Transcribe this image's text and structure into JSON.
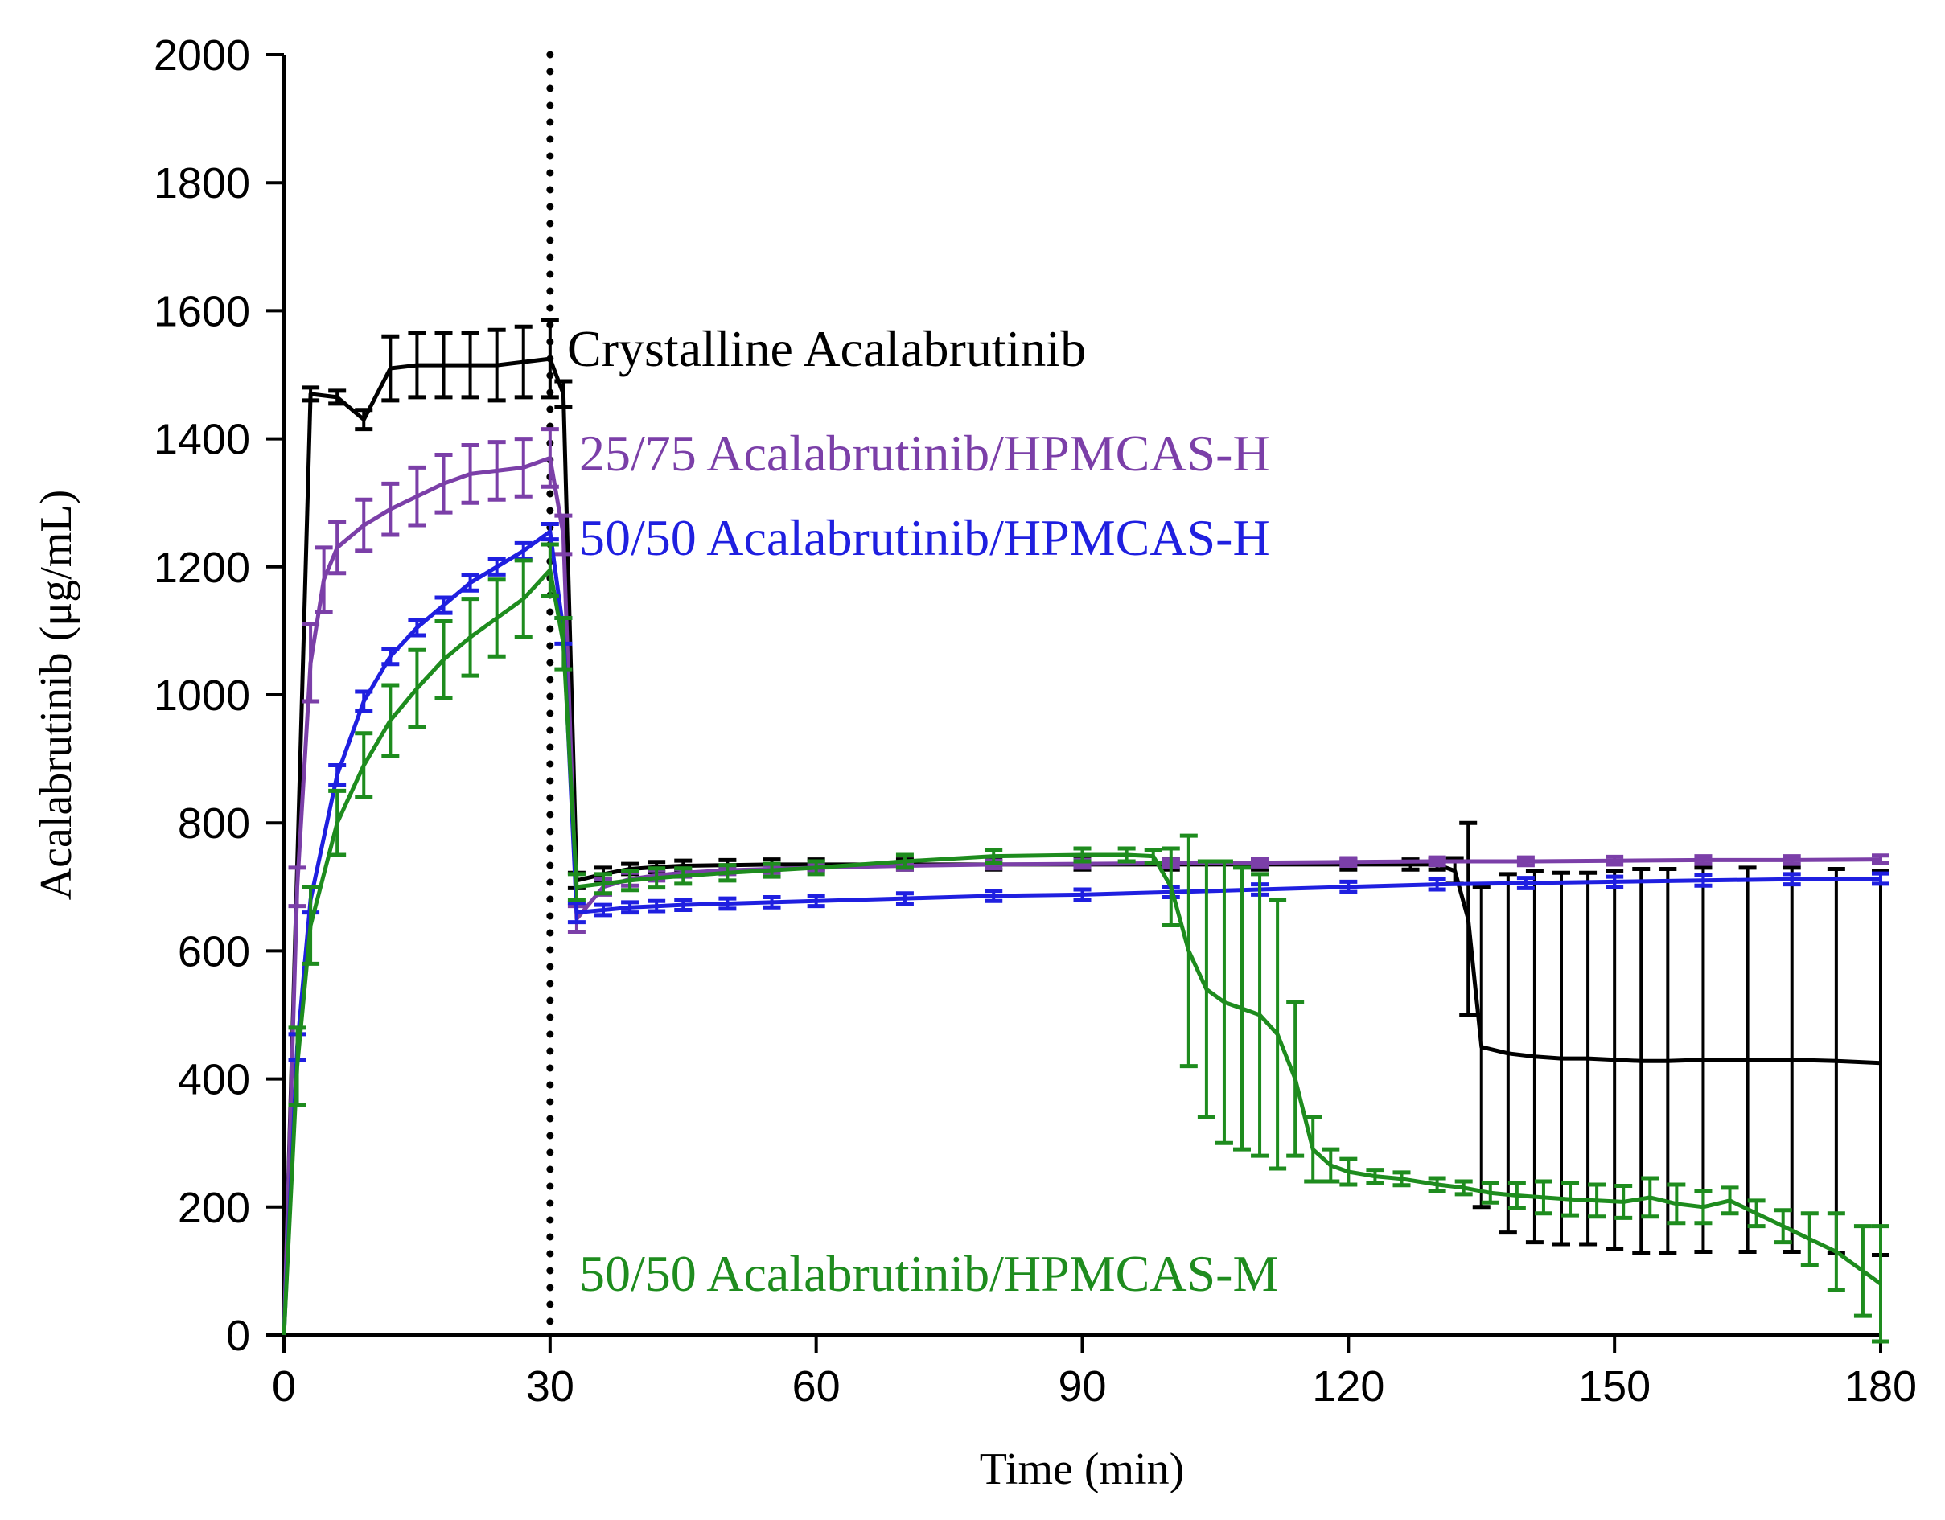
{
  "chart_data": {
    "type": "line",
    "title": "",
    "xlabel": "Time (min)",
    "ylabel": "Acalabrutinib (μg/mL)",
    "xlim": [
      0,
      180
    ],
    "ylim": [
      0,
      2000
    ],
    "xticks": [
      0,
      30,
      60,
      90,
      120,
      150,
      180
    ],
    "yticks": [
      0,
      200,
      400,
      600,
      800,
      1000,
      1200,
      1400,
      1600,
      1800,
      2000
    ],
    "xtick_labels": [
      "0",
      "30",
      "60",
      "90",
      "120",
      "150",
      "180"
    ],
    "ytick_labels": [
      "0",
      "200",
      "400",
      "600",
      "800",
      "1000",
      "1200",
      "1400",
      "1600",
      "1800",
      "2000"
    ],
    "grid": false,
    "vline": {
      "x": 30,
      "style": "dotted"
    },
    "series": [
      {
        "name": "Crystalline Acalabrutinib",
        "color": "#000000",
        "label": "Crystalline  Acalabrutinib",
        "points": [
          [
            0,
            0,
            0
          ],
          [
            3,
            1470,
            10
          ],
          [
            6,
            1465,
            10
          ],
          [
            9,
            1430,
            15
          ],
          [
            12,
            1510,
            50
          ],
          [
            15,
            1515,
            50
          ],
          [
            18,
            1515,
            50
          ],
          [
            21,
            1515,
            50
          ],
          [
            24,
            1515,
            55
          ],
          [
            27,
            1520,
            55
          ],
          [
            30,
            1525,
            60
          ],
          [
            31.5,
            1470,
            20
          ],
          [
            33,
            710,
            12
          ],
          [
            36,
            720,
            10
          ],
          [
            39,
            728,
            8
          ],
          [
            42,
            731,
            8
          ],
          [
            45,
            733,
            8
          ],
          [
            50,
            734,
            8
          ],
          [
            55,
            735,
            8
          ],
          [
            60,
            735,
            8
          ],
          [
            70,
            735,
            8
          ],
          [
            80,
            735,
            8
          ],
          [
            90,
            735,
            8
          ],
          [
            100,
            735,
            8
          ],
          [
            110,
            735,
            8
          ],
          [
            120,
            735,
            8
          ],
          [
            127,
            735,
            8
          ],
          [
            130,
            735,
            8
          ],
          [
            132,
            725,
            20
          ],
          [
            133.5,
            650,
            150
          ],
          [
            135,
            450,
            250
          ],
          [
            138,
            440,
            280
          ],
          [
            141,
            435,
            290
          ],
          [
            144,
            432,
            290
          ],
          [
            147,
            432,
            290
          ],
          [
            150,
            430,
            295
          ],
          [
            153,
            428,
            300
          ],
          [
            156,
            428,
            300
          ],
          [
            160,
            430,
            300
          ],
          [
            165,
            430,
            300
          ],
          [
            170,
            430,
            300
          ],
          [
            175,
            428,
            300
          ],
          [
            180,
            425,
            300
          ]
        ]
      },
      {
        "name": "25/75 Acalabrutinib/HPMCAS-H",
        "color": "#7B3FA8",
        "label": "25/75 Acalabrutinib/HPMCAS-H",
        "points": [
          [
            0,
            0,
            0
          ],
          [
            1.5,
            700,
            30
          ],
          [
            3,
            1050,
            60
          ],
          [
            4.5,
            1180,
            50
          ],
          [
            6,
            1230,
            40
          ],
          [
            9,
            1265,
            40
          ],
          [
            12,
            1290,
            40
          ],
          [
            15,
            1310,
            45
          ],
          [
            18,
            1330,
            45
          ],
          [
            21,
            1345,
            45
          ],
          [
            24,
            1350,
            45
          ],
          [
            27,
            1355,
            45
          ],
          [
            30,
            1370,
            45
          ],
          [
            31.5,
            1250,
            30
          ],
          [
            33,
            650,
            20
          ],
          [
            36,
            700,
            12
          ],
          [
            39,
            712,
            10
          ],
          [
            42,
            718,
            8
          ],
          [
            45,
            722,
            6
          ],
          [
            50,
            726,
            6
          ],
          [
            55,
            728,
            6
          ],
          [
            60,
            730,
            6
          ],
          [
            70,
            733,
            6
          ],
          [
            80,
            735,
            6
          ],
          [
            90,
            736,
            6
          ],
          [
            100,
            737,
            6
          ],
          [
            110,
            738,
            6
          ],
          [
            120,
            739,
            6
          ],
          [
            130,
            740,
            6
          ],
          [
            140,
            740,
            6
          ],
          [
            150,
            741,
            6
          ],
          [
            160,
            742,
            6
          ],
          [
            170,
            742,
            6
          ],
          [
            180,
            743,
            6
          ]
        ]
      },
      {
        "name": "50/50 Acalabrutinib/HPMCAS-H",
        "color": "#1F1FE0",
        "label": "50/50 Acalabrutinib/HPMCAS-H",
        "points": [
          [
            0,
            0,
            0
          ],
          [
            1.5,
            450,
            20
          ],
          [
            3,
            680,
            20
          ],
          [
            6,
            875,
            15
          ],
          [
            9,
            990,
            15
          ],
          [
            12,
            1060,
            12
          ],
          [
            15,
            1105,
            12
          ],
          [
            18,
            1140,
            12
          ],
          [
            21,
            1175,
            12
          ],
          [
            24,
            1200,
            12
          ],
          [
            27,
            1225,
            12
          ],
          [
            30,
            1255,
            12
          ],
          [
            31.5,
            1100,
            20
          ],
          [
            33,
            660,
            15
          ],
          [
            36,
            664,
            8
          ],
          [
            39,
            668,
            8
          ],
          [
            42,
            670,
            8
          ],
          [
            45,
            672,
            8
          ],
          [
            50,
            674,
            8
          ],
          [
            55,
            676,
            8
          ],
          [
            60,
            678,
            8
          ],
          [
            70,
            682,
            8
          ],
          [
            80,
            686,
            8
          ],
          [
            90,
            688,
            8
          ],
          [
            100,
            692,
            8
          ],
          [
            110,
            696,
            8
          ],
          [
            120,
            700,
            8
          ],
          [
            130,
            704,
            8
          ],
          [
            140,
            706,
            8
          ],
          [
            150,
            708,
            8
          ],
          [
            160,
            710,
            8
          ],
          [
            170,
            712,
            8
          ],
          [
            180,
            713,
            8
          ]
        ]
      },
      {
        "name": "50/50 Acalabrutinib/HPMCAS-M",
        "color": "#1E8C1E",
        "label": "50/50 Acalabrutinib/HPMCAS-M",
        "points": [
          [
            0,
            0,
            0
          ],
          [
            1.5,
            420,
            60
          ],
          [
            3,
            640,
            60
          ],
          [
            6,
            800,
            50
          ],
          [
            9,
            890,
            50
          ],
          [
            12,
            960,
            55
          ],
          [
            15,
            1010,
            60
          ],
          [
            18,
            1055,
            60
          ],
          [
            21,
            1090,
            60
          ],
          [
            24,
            1120,
            60
          ],
          [
            27,
            1150,
            60
          ],
          [
            30,
            1195,
            40
          ],
          [
            31.5,
            1080,
            40
          ],
          [
            33,
            700,
            20
          ],
          [
            36,
            705,
            15
          ],
          [
            39,
            710,
            15
          ],
          [
            42,
            714,
            15
          ],
          [
            45,
            717,
            12
          ],
          [
            50,
            722,
            12
          ],
          [
            55,
            726,
            10
          ],
          [
            60,
            730,
            10
          ],
          [
            70,
            740,
            10
          ],
          [
            80,
            748,
            10
          ],
          [
            90,
            750,
            10
          ],
          [
            95,
            750,
            10
          ],
          [
            98,
            748,
            10
          ],
          [
            100,
            700,
            60
          ],
          [
            102,
            600,
            180
          ],
          [
            104,
            540,
            200
          ],
          [
            106,
            520,
            220
          ],
          [
            108,
            510,
            220
          ],
          [
            110,
            500,
            220
          ],
          [
            112,
            470,
            210
          ],
          [
            114,
            400,
            120
          ],
          [
            116,
            290,
            50
          ],
          [
            118,
            265,
            25
          ],
          [
            120,
            255,
            20
          ],
          [
            123,
            248,
            10
          ],
          [
            126,
            244,
            10
          ],
          [
            130,
            235,
            10
          ],
          [
            133,
            230,
            10
          ],
          [
            136,
            222,
            15
          ],
          [
            139,
            218,
            20
          ],
          [
            142,
            215,
            25
          ],
          [
            145,
            212,
            25
          ],
          [
            148,
            210,
            25
          ],
          [
            151,
            208,
            25
          ],
          [
            154,
            215,
            30
          ],
          [
            157,
            205,
            30
          ],
          [
            160,
            200,
            25
          ],
          [
            163,
            210,
            20
          ],
          [
            166,
            190,
            20
          ],
          [
            169,
            170,
            25
          ],
          [
            172,
            150,
            40
          ],
          [
            175,
            130,
            60
          ],
          [
            178,
            100,
            70
          ],
          [
            180,
            80,
            90
          ]
        ]
      }
    ]
  }
}
